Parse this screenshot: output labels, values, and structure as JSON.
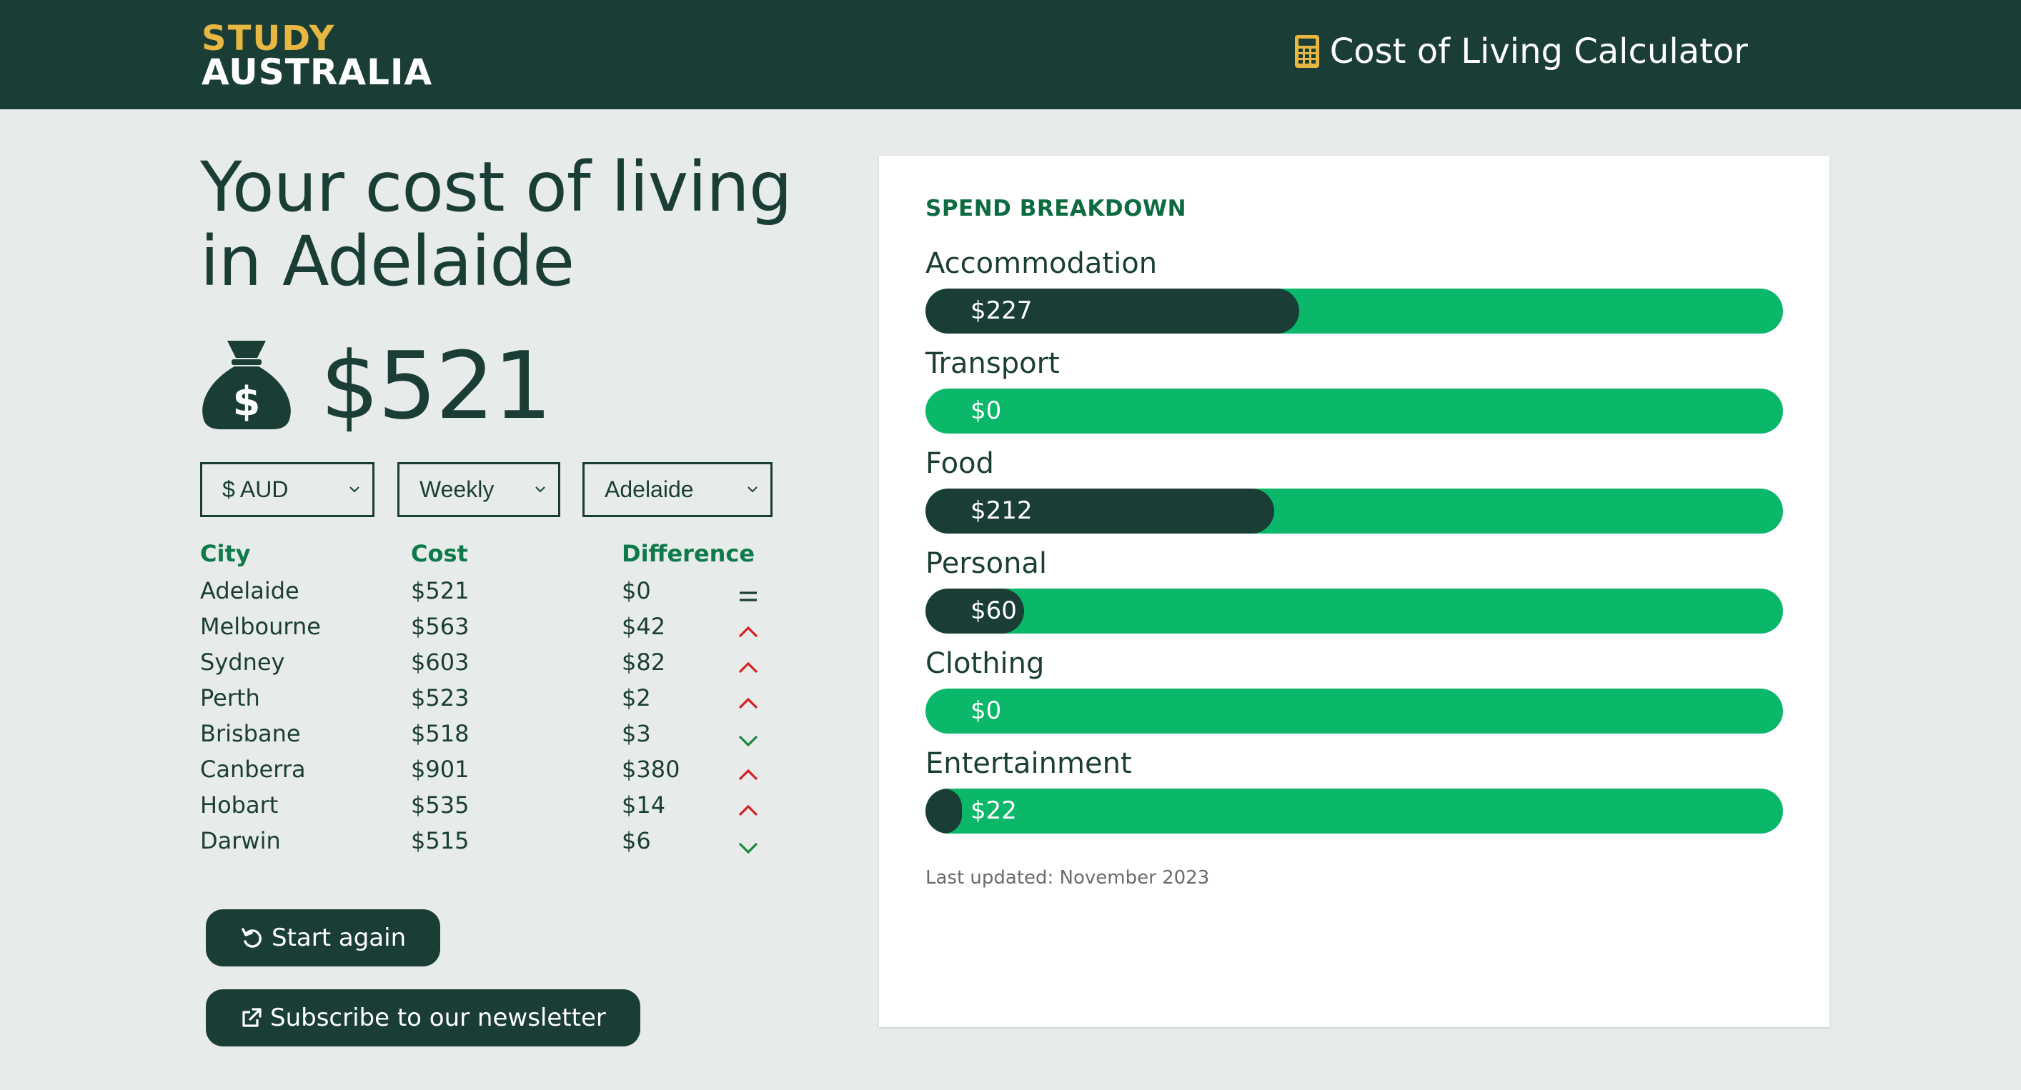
{
  "header": {
    "logo_line1": "STUDY",
    "logo_line2": "AUSTRALIA",
    "title": "Cost of Living Calculator",
    "icon": "calculator-icon"
  },
  "colors": {
    "header_bg": "#1a3e36",
    "logo_accent": "#e8b742",
    "bar_track": "#0bb86a",
    "bar_fill": "#1a3e36",
    "up_arrow": "#d62020",
    "down_arrow": "#1a8a3a",
    "table_header": "#0e7a4a"
  },
  "main": {
    "title_line1": "Your cost of living",
    "title_line2": "in Adelaide",
    "total": "$521",
    "total_icon": "money-bag-icon"
  },
  "filters": {
    "currency": "$ AUD",
    "period": "Weekly",
    "city": "Adelaide"
  },
  "table": {
    "headers": [
      "City",
      "Cost",
      "Difference"
    ],
    "rows": [
      {
        "city": "Adelaide",
        "cost": "$521",
        "difference": "$0",
        "trend": "equal"
      },
      {
        "city": "Melbourne",
        "cost": "$563",
        "difference": "$42",
        "trend": "up"
      },
      {
        "city": "Sydney",
        "cost": "$603",
        "difference": "$82",
        "trend": "up"
      },
      {
        "city": "Perth",
        "cost": "$523",
        "difference": "$2",
        "trend": "up"
      },
      {
        "city": "Brisbane",
        "cost": "$518",
        "difference": "$3",
        "trend": "down"
      },
      {
        "city": "Canberra",
        "cost": "$901",
        "difference": "$380",
        "trend": "up"
      },
      {
        "city": "Hobart",
        "cost": "$535",
        "difference": "$14",
        "trend": "up"
      },
      {
        "city": "Darwin",
        "cost": "$515",
        "difference": "$6",
        "trend": "down"
      }
    ]
  },
  "buttons": {
    "start_again": "Start again",
    "subscribe": "Subscribe to our newsletter"
  },
  "breakdown": {
    "title": "SPEND BREAKDOWN",
    "max_value": 521,
    "items": [
      {
        "label": "Accommodation",
        "value": "$227",
        "amount": 227
      },
      {
        "label": "Transport",
        "value": "$0",
        "amount": 0
      },
      {
        "label": "Food",
        "value": "$212",
        "amount": 212
      },
      {
        "label": "Personal",
        "value": "$60",
        "amount": 60
      },
      {
        "label": "Clothing",
        "value": "$0",
        "amount": 0
      },
      {
        "label": "Entertainment",
        "value": "$22",
        "amount": 22
      }
    ],
    "last_updated": "Last updated: November 2023"
  }
}
